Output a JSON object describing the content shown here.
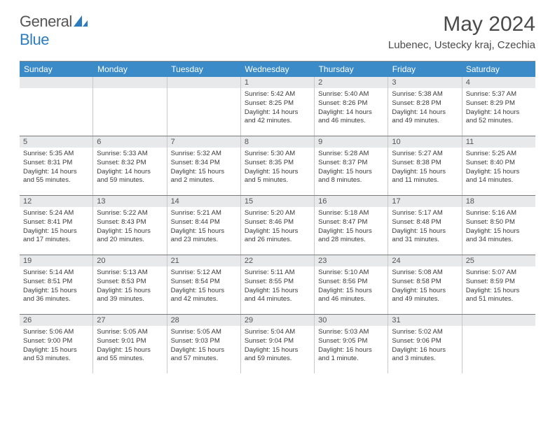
{
  "logo": {
    "text1": "General",
    "text2": "Blue"
  },
  "title": "May 2024",
  "subtitle": "Lubenec, Ustecky kraj, Czechia",
  "colors": {
    "header_bg": "#3b8bc8",
    "header_text": "#ffffff",
    "daynum_bg": "#e7e9ea",
    "row_border": "#7a7a7a",
    "cell_border": "#c8c8c8",
    "logo_gray": "#555555",
    "logo_blue": "#2e7cc0"
  },
  "daysOfWeek": [
    "Sunday",
    "Monday",
    "Tuesday",
    "Wednesday",
    "Thursday",
    "Friday",
    "Saturday"
  ],
  "weeks": [
    [
      {
        "num": "",
        "sunrise": "",
        "sunset": "",
        "daylight": ""
      },
      {
        "num": "",
        "sunrise": "",
        "sunset": "",
        "daylight": ""
      },
      {
        "num": "",
        "sunrise": "",
        "sunset": "",
        "daylight": ""
      },
      {
        "num": "1",
        "sunrise": "Sunrise: 5:42 AM",
        "sunset": "Sunset: 8:25 PM",
        "daylight": "Daylight: 14 hours and 42 minutes."
      },
      {
        "num": "2",
        "sunrise": "Sunrise: 5:40 AM",
        "sunset": "Sunset: 8:26 PM",
        "daylight": "Daylight: 14 hours and 46 minutes."
      },
      {
        "num": "3",
        "sunrise": "Sunrise: 5:38 AM",
        "sunset": "Sunset: 8:28 PM",
        "daylight": "Daylight: 14 hours and 49 minutes."
      },
      {
        "num": "4",
        "sunrise": "Sunrise: 5:37 AM",
        "sunset": "Sunset: 8:29 PM",
        "daylight": "Daylight: 14 hours and 52 minutes."
      }
    ],
    [
      {
        "num": "5",
        "sunrise": "Sunrise: 5:35 AM",
        "sunset": "Sunset: 8:31 PM",
        "daylight": "Daylight: 14 hours and 55 minutes."
      },
      {
        "num": "6",
        "sunrise": "Sunrise: 5:33 AM",
        "sunset": "Sunset: 8:32 PM",
        "daylight": "Daylight: 14 hours and 59 minutes."
      },
      {
        "num": "7",
        "sunrise": "Sunrise: 5:32 AM",
        "sunset": "Sunset: 8:34 PM",
        "daylight": "Daylight: 15 hours and 2 minutes."
      },
      {
        "num": "8",
        "sunrise": "Sunrise: 5:30 AM",
        "sunset": "Sunset: 8:35 PM",
        "daylight": "Daylight: 15 hours and 5 minutes."
      },
      {
        "num": "9",
        "sunrise": "Sunrise: 5:28 AM",
        "sunset": "Sunset: 8:37 PM",
        "daylight": "Daylight: 15 hours and 8 minutes."
      },
      {
        "num": "10",
        "sunrise": "Sunrise: 5:27 AM",
        "sunset": "Sunset: 8:38 PM",
        "daylight": "Daylight: 15 hours and 11 minutes."
      },
      {
        "num": "11",
        "sunrise": "Sunrise: 5:25 AM",
        "sunset": "Sunset: 8:40 PM",
        "daylight": "Daylight: 15 hours and 14 minutes."
      }
    ],
    [
      {
        "num": "12",
        "sunrise": "Sunrise: 5:24 AM",
        "sunset": "Sunset: 8:41 PM",
        "daylight": "Daylight: 15 hours and 17 minutes."
      },
      {
        "num": "13",
        "sunrise": "Sunrise: 5:22 AM",
        "sunset": "Sunset: 8:43 PM",
        "daylight": "Daylight: 15 hours and 20 minutes."
      },
      {
        "num": "14",
        "sunrise": "Sunrise: 5:21 AM",
        "sunset": "Sunset: 8:44 PM",
        "daylight": "Daylight: 15 hours and 23 minutes."
      },
      {
        "num": "15",
        "sunrise": "Sunrise: 5:20 AM",
        "sunset": "Sunset: 8:46 PM",
        "daylight": "Daylight: 15 hours and 26 minutes."
      },
      {
        "num": "16",
        "sunrise": "Sunrise: 5:18 AM",
        "sunset": "Sunset: 8:47 PM",
        "daylight": "Daylight: 15 hours and 28 minutes."
      },
      {
        "num": "17",
        "sunrise": "Sunrise: 5:17 AM",
        "sunset": "Sunset: 8:48 PM",
        "daylight": "Daylight: 15 hours and 31 minutes."
      },
      {
        "num": "18",
        "sunrise": "Sunrise: 5:16 AM",
        "sunset": "Sunset: 8:50 PM",
        "daylight": "Daylight: 15 hours and 34 minutes."
      }
    ],
    [
      {
        "num": "19",
        "sunrise": "Sunrise: 5:14 AM",
        "sunset": "Sunset: 8:51 PM",
        "daylight": "Daylight: 15 hours and 36 minutes."
      },
      {
        "num": "20",
        "sunrise": "Sunrise: 5:13 AM",
        "sunset": "Sunset: 8:53 PM",
        "daylight": "Daylight: 15 hours and 39 minutes."
      },
      {
        "num": "21",
        "sunrise": "Sunrise: 5:12 AM",
        "sunset": "Sunset: 8:54 PM",
        "daylight": "Daylight: 15 hours and 42 minutes."
      },
      {
        "num": "22",
        "sunrise": "Sunrise: 5:11 AM",
        "sunset": "Sunset: 8:55 PM",
        "daylight": "Daylight: 15 hours and 44 minutes."
      },
      {
        "num": "23",
        "sunrise": "Sunrise: 5:10 AM",
        "sunset": "Sunset: 8:56 PM",
        "daylight": "Daylight: 15 hours and 46 minutes."
      },
      {
        "num": "24",
        "sunrise": "Sunrise: 5:08 AM",
        "sunset": "Sunset: 8:58 PM",
        "daylight": "Daylight: 15 hours and 49 minutes."
      },
      {
        "num": "25",
        "sunrise": "Sunrise: 5:07 AM",
        "sunset": "Sunset: 8:59 PM",
        "daylight": "Daylight: 15 hours and 51 minutes."
      }
    ],
    [
      {
        "num": "26",
        "sunrise": "Sunrise: 5:06 AM",
        "sunset": "Sunset: 9:00 PM",
        "daylight": "Daylight: 15 hours and 53 minutes."
      },
      {
        "num": "27",
        "sunrise": "Sunrise: 5:05 AM",
        "sunset": "Sunset: 9:01 PM",
        "daylight": "Daylight: 15 hours and 55 minutes."
      },
      {
        "num": "28",
        "sunrise": "Sunrise: 5:05 AM",
        "sunset": "Sunset: 9:03 PM",
        "daylight": "Daylight: 15 hours and 57 minutes."
      },
      {
        "num": "29",
        "sunrise": "Sunrise: 5:04 AM",
        "sunset": "Sunset: 9:04 PM",
        "daylight": "Daylight: 15 hours and 59 minutes."
      },
      {
        "num": "30",
        "sunrise": "Sunrise: 5:03 AM",
        "sunset": "Sunset: 9:05 PM",
        "daylight": "Daylight: 16 hours and 1 minute."
      },
      {
        "num": "31",
        "sunrise": "Sunrise: 5:02 AM",
        "sunset": "Sunset: 9:06 PM",
        "daylight": "Daylight: 16 hours and 3 minutes."
      },
      {
        "num": "",
        "sunrise": "",
        "sunset": "",
        "daylight": ""
      }
    ]
  ]
}
